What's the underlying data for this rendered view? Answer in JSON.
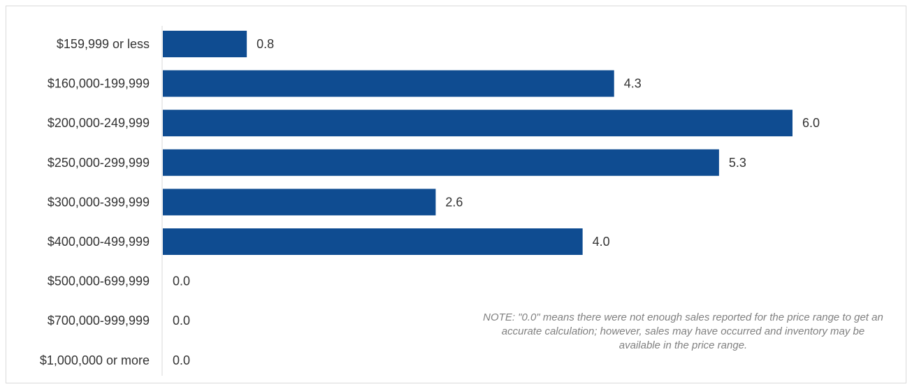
{
  "chart_data": {
    "type": "bar",
    "orientation": "horizontal",
    "categories": [
      "$159,999 or less",
      "$160,000-199,999",
      "$200,000-249,999",
      "$250,000-299,999",
      "$300,000-399,999",
      "$400,000-499,999",
      "$500,000-699,999",
      "$700,000-999,999",
      "$1,000,000 or more"
    ],
    "values": [
      0.8,
      4.3,
      6.0,
      5.3,
      2.6,
      4.0,
      0.0,
      0.0,
      0.0
    ],
    "value_labels": [
      "0.8",
      "4.3",
      "6.0",
      "5.3",
      "2.6",
      "4.0",
      "0.0",
      "0.0",
      "0.0"
    ],
    "xlim": [
      0,
      6.0
    ],
    "grid": false,
    "legend": "none",
    "bar_color": "#0f4c91",
    "note": "NOTE: \"0.0\" means there were not enough sales reported for the price range to get an accurate calculation;  however, sales may have occurred and inventory may be available in the price range."
  }
}
